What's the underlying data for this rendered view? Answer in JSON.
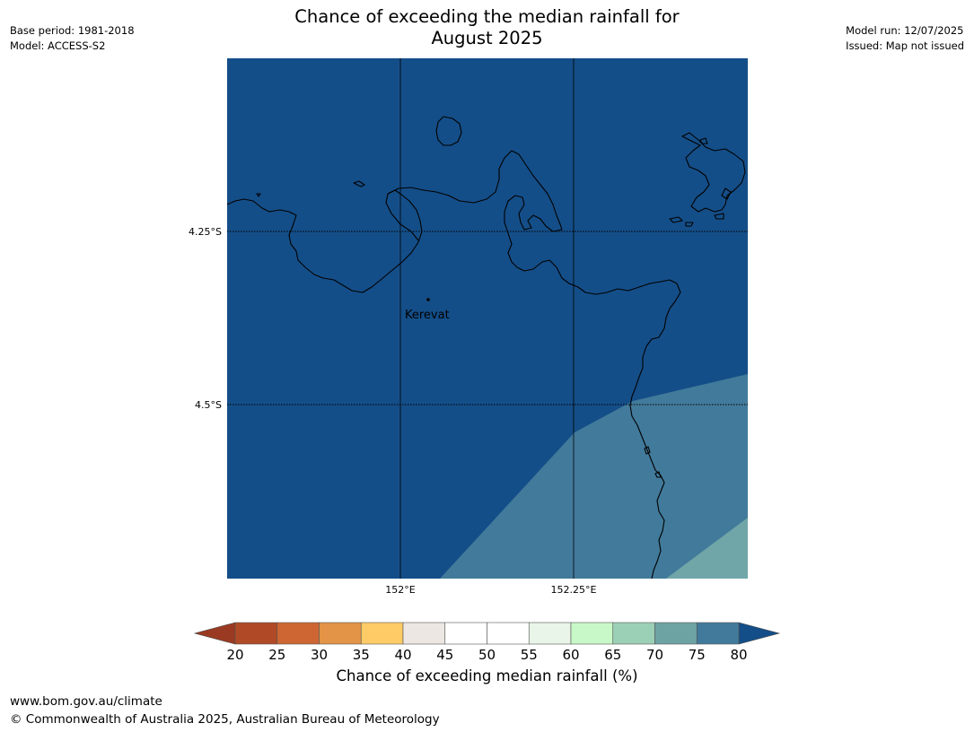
{
  "title": {
    "line1": "Chance of exceeding the median rainfall for",
    "line2": "August 2025"
  },
  "meta_left": {
    "base_period": "Base period: 1981-2018",
    "model": "Model: ACCESS-S2"
  },
  "meta_right": {
    "model_run": "Model run: 12/07/2025",
    "issued": "Issued: Map not issued"
  },
  "map": {
    "background_color": "#144e88",
    "lat_labels": [
      "4.25°S",
      "4.5°S"
    ],
    "lon_labels": [
      "152°E",
      "152.25°E"
    ],
    "place_label": "Kerevat",
    "zones": [
      {
        "range": "75-80",
        "color": "#427a9b"
      },
      {
        "range": "70-75",
        "color": "#70a6a8"
      }
    ]
  },
  "colorbar": {
    "label": "Chance of exceeding median rainfall (%)",
    "ticks": [
      "20",
      "25",
      "30",
      "35",
      "40",
      "45",
      "50",
      "55",
      "60",
      "65",
      "70",
      "75",
      "80"
    ],
    "under_color": "#9b3a22",
    "over_color": "#144e88",
    "colors": [
      "#b04a26",
      "#cd6632",
      "#e39446",
      "#fecb66",
      "#ece7e2",
      "#ffffff",
      "#ffffff",
      "#e8f5e8",
      "#c8f8c8",
      "#9cd0b6",
      "#6ea3a4",
      "#417a9b"
    ]
  },
  "footer": {
    "url": "www.bom.gov.au/climate",
    "copyright": "© Commonwealth of Australia 2025, Australian Bureau of Meteorology"
  }
}
